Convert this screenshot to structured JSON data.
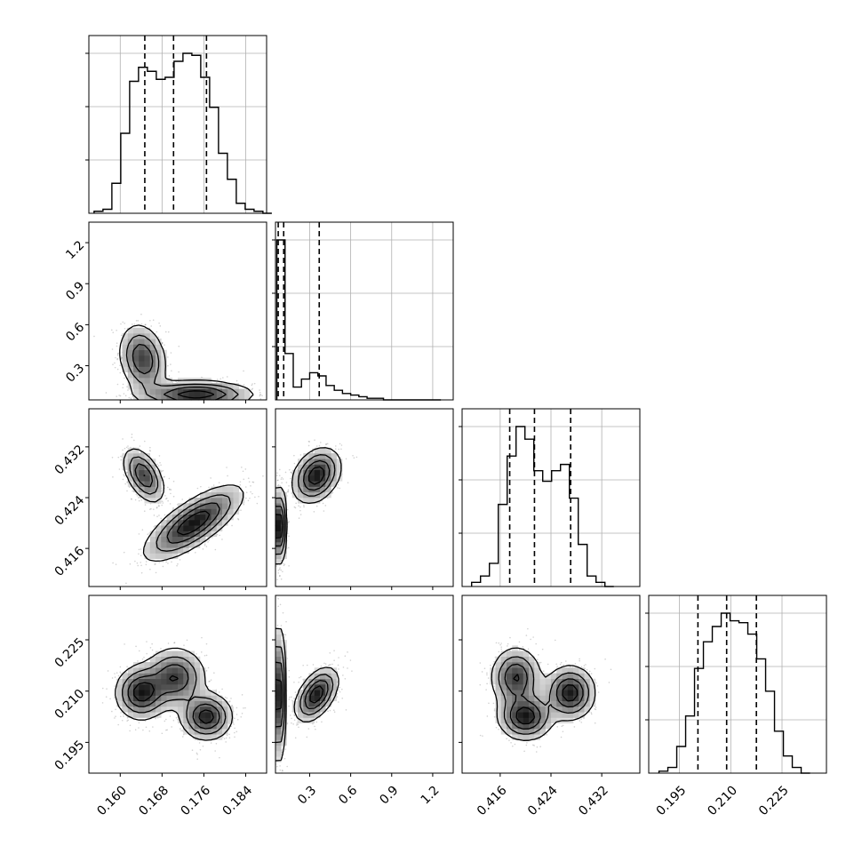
{
  "chart_data": {
    "type": "corner",
    "grid": true,
    "colors": {
      "hist": "#000000",
      "points": "#000000",
      "density": "#000000",
      "grid": "#b0b0b0"
    },
    "quantiles": [
      0.16,
      0.5,
      0.84
    ],
    "parameters": [
      {
        "index": 0,
        "range": [
          0.154,
          0.188
        ],
        "ticks": [
          0.16,
          0.168,
          0.176,
          0.184
        ],
        "tick_labels": [
          "0.160",
          "0.168",
          "0.176",
          "0.184"
        ],
        "quantile_values": [
          0.1647,
          0.1702,
          0.1765
        ],
        "histogram": {
          "bins": [
            0.155,
            0.1567,
            0.1584,
            0.1601,
            0.1618,
            0.1635,
            0.1652,
            0.1669,
            0.1686,
            0.1703,
            0.172,
            0.1737,
            0.1754,
            0.1771,
            0.1788,
            0.1805,
            0.1822,
            0.1839,
            0.1856,
            0.1873
          ],
          "counts": [
            0.01,
            0.02,
            0.15,
            0.4,
            0.66,
            0.73,
            0.71,
            0.67,
            0.68,
            0.76,
            0.8,
            0.79,
            0.68,
            0.53,
            0.3,
            0.17,
            0.05,
            0.02,
            0.01,
            0.0
          ]
        }
      },
      {
        "index": 1,
        "range": [
          0.05,
          1.35
        ],
        "ticks": [
          0.3,
          0.6,
          0.9,
          1.2
        ],
        "tick_labels": [
          "0.3",
          "0.6",
          "0.9",
          "1.2"
        ],
        "quantile_values": [
          0.07,
          0.11,
          0.37
        ],
        "histogram": {
          "bins": [
            0.06,
            0.12,
            0.18,
            0.24,
            0.3,
            0.36,
            0.42,
            0.48,
            0.54,
            0.6,
            0.66,
            0.72,
            0.78,
            0.84,
            0.9,
            0.96,
            1.02,
            1.08,
            1.14,
            1.2
          ],
          "counts": [
            1.0,
            0.29,
            0.08,
            0.13,
            0.17,
            0.15,
            0.09,
            0.06,
            0.04,
            0.03,
            0.02,
            0.01,
            0.01,
            0.0,
            0.0,
            0.0,
            0.0,
            0.0,
            0.0,
            0.0
          ]
        }
      },
      {
        "index": 2,
        "range": [
          0.41,
          0.438
        ],
        "ticks": [
          0.416,
          0.424,
          0.432
        ],
        "tick_labels": [
          "0.416",
          "0.424",
          "0.432"
        ],
        "quantile_values": [
          0.4175,
          0.4214,
          0.4271
        ],
        "histogram": {
          "bins": [
            0.4115,
            0.4129,
            0.4143,
            0.4157,
            0.4171,
            0.4185,
            0.4199,
            0.4213,
            0.4227,
            0.4241,
            0.4255,
            0.4269,
            0.4283,
            0.4297,
            0.4311,
            0.4325
          ],
          "counts": [
            0.02,
            0.05,
            0.11,
            0.39,
            0.62,
            0.76,
            0.7,
            0.55,
            0.5,
            0.55,
            0.58,
            0.42,
            0.2,
            0.05,
            0.02,
            0.0
          ]
        }
      },
      {
        "index": 3,
        "range": [
          0.186,
          0.238
        ],
        "ticks": [
          0.195,
          0.21,
          0.225
        ],
        "tick_labels": [
          "0.195",
          "0.210",
          "0.225"
        ],
        "quantile_values": [
          0.2004,
          0.2088,
          0.2175
        ],
        "histogram": {
          "bins": [
            0.189,
            0.1916,
            0.1942,
            0.1968,
            0.1994,
            0.202,
            0.2046,
            0.2072,
            0.2098,
            0.2124,
            0.215,
            0.2176,
            0.2202,
            0.2228,
            0.2254,
            0.228,
            0.2306
          ],
          "counts": [
            0.01,
            0.03,
            0.14,
            0.3,
            0.55,
            0.69,
            0.77,
            0.84,
            0.8,
            0.79,
            0.73,
            0.6,
            0.43,
            0.22,
            0.09,
            0.03,
            0.0
          ]
        }
      }
    ],
    "pairs": [
      {
        "x": 0,
        "y": 1,
        "modes": [
          {
            "cx": 0.1643,
            "cy": 0.35,
            "sx": 0.0023,
            "sy": 0.13,
            "rho": -0.2,
            "weight": 0.45
          },
          {
            "cx": 0.1745,
            "cy": 0.09,
            "sx": 0.0055,
            "sy": 0.05,
            "rho": 0.0,
            "weight": 0.55
          }
        ]
      },
      {
        "x": 0,
        "y": 2,
        "modes": [
          {
            "cx": 0.1645,
            "cy": 0.4275,
            "sx": 0.002,
            "sy": 0.0022,
            "rho": -0.5,
            "weight": 0.45
          },
          {
            "cx": 0.174,
            "cy": 0.42,
            "sx": 0.0048,
            "sy": 0.003,
            "rho": 0.75,
            "weight": 0.55
          }
        ]
      },
      {
        "x": 1,
        "y": 2,
        "modes": [
          {
            "cx": 0.07,
            "cy": 0.4195,
            "sx": 0.03,
            "sy": 0.003,
            "rho": 0.0,
            "weight": 0.55
          },
          {
            "cx": 0.35,
            "cy": 0.4275,
            "sx": 0.09,
            "sy": 0.0022,
            "rho": 0.3,
            "weight": 0.45
          }
        ]
      },
      {
        "x": 0,
        "y": 3,
        "modes": [
          {
            "cx": 0.164,
            "cy": 0.2095,
            "sx": 0.0025,
            "sy": 0.004,
            "rho": 0.0,
            "weight": 0.35
          },
          {
            "cx": 0.1705,
            "cy": 0.214,
            "sx": 0.003,
            "sy": 0.0045,
            "rho": 0.0,
            "weight": 0.3
          },
          {
            "cx": 0.1765,
            "cy": 0.2025,
            "sx": 0.0025,
            "sy": 0.0035,
            "rho": 0.0,
            "weight": 0.35
          }
        ]
      },
      {
        "x": 1,
        "y": 3,
        "modes": [
          {
            "cx": 0.07,
            "cy": 0.209,
            "sx": 0.025,
            "sy": 0.01,
            "rho": 0.0,
            "weight": 0.55
          },
          {
            "cx": 0.35,
            "cy": 0.209,
            "sx": 0.08,
            "sy": 0.004,
            "rho": 0.5,
            "weight": 0.45
          }
        ]
      },
      {
        "x": 2,
        "y": 3,
        "modes": [
          {
            "cx": 0.4185,
            "cy": 0.214,
            "sx": 0.002,
            "sy": 0.0045,
            "rho": 0.0,
            "weight": 0.3
          },
          {
            "cx": 0.42,
            "cy": 0.2025,
            "sx": 0.0022,
            "sy": 0.0035,
            "rho": 0.0,
            "weight": 0.35
          },
          {
            "cx": 0.427,
            "cy": 0.2095,
            "sx": 0.002,
            "sy": 0.004,
            "rho": 0.0,
            "weight": 0.35
          }
        ]
      }
    ],
    "contour_levels": [
      0.5,
      1.0,
      1.5,
      2.0
    ]
  }
}
